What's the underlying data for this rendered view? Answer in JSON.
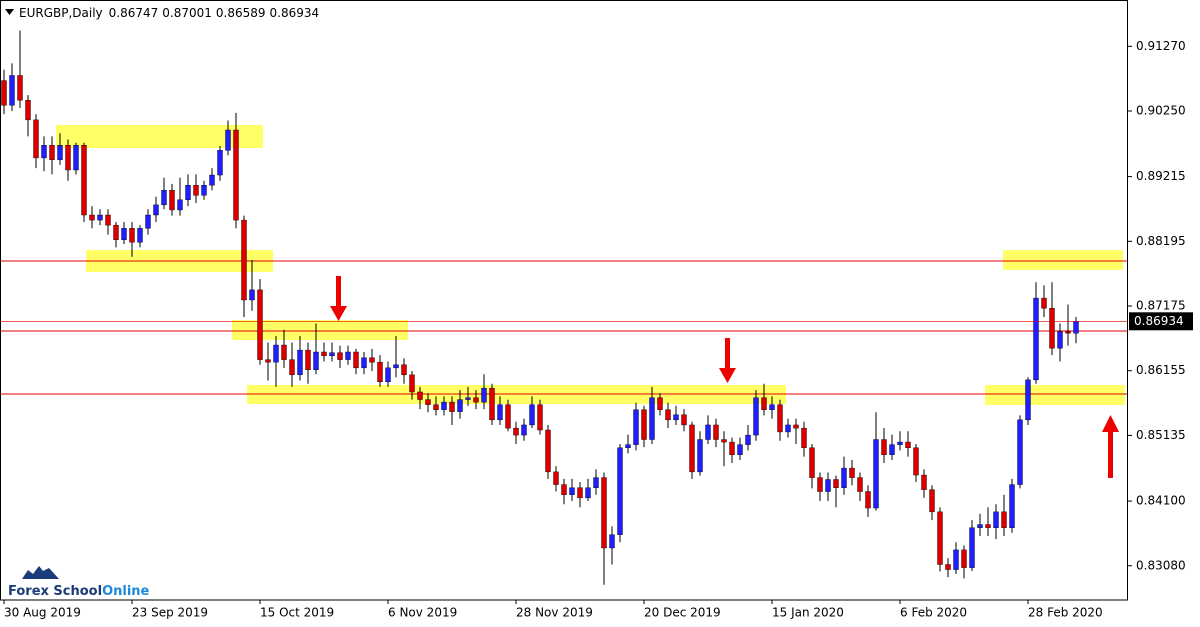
{
  "chart_data": {
    "type": "candlestick",
    "symbol": "EURGBP,Daily",
    "up_color": "#1f1fff",
    "down_color": "#dd0000",
    "ylim": [
      0.8254,
      0.92
    ],
    "yticks": [
      {
        "value": 0.9127,
        "label": "0.91270"
      },
      {
        "value": 0.9025,
        "label": "0.90250"
      },
      0.89215,
      0.88195,
      0.87175,
      0.86155,
      0.85135,
      {
        "value": 0.841,
        "label": "0.84100"
      },
      {
        "value": 0.8308,
        "label": "0.83080"
      }
    ],
    "categories": [
      "30 Aug 2019",
      null,
      null,
      null,
      null,
      null,
      null,
      null,
      null,
      null,
      null,
      null,
      null,
      null,
      null,
      null,
      "23 Sep 2019",
      null,
      null,
      null,
      null,
      null,
      null,
      null,
      null,
      null,
      null,
      null,
      null,
      null,
      null,
      null,
      "15 Oct 2019",
      null,
      null,
      null,
      null,
      null,
      null,
      null,
      null,
      null,
      null,
      null,
      null,
      null,
      null,
      null,
      "6 Nov 2019",
      null,
      null,
      null,
      null,
      null,
      null,
      null,
      null,
      null,
      null,
      null,
      null,
      null,
      null,
      null,
      "28 Nov 2019",
      null,
      null,
      null,
      null,
      null,
      null,
      null,
      null,
      null,
      null,
      null,
      null,
      null,
      null,
      null,
      "20 Dec 2019",
      null,
      null,
      null,
      null,
      null,
      null,
      null,
      null,
      null,
      null,
      null,
      null,
      null,
      null,
      null,
      "15 Jan 2020",
      null,
      null,
      null,
      null,
      null,
      null,
      null,
      null,
      null,
      null,
      null,
      null,
      null,
      null,
      null,
      "6 Feb 2020",
      null,
      null,
      null,
      null,
      null,
      null,
      null,
      null,
      null,
      null,
      null,
      null,
      null,
      null,
      null,
      "28 Feb 2020",
      null,
      null,
      null,
      null,
      null,
      null
    ],
    "ohlc": [
      [
        0.9073,
        0.909,
        0.902,
        0.9034
      ],
      [
        0.9034,
        0.91,
        0.9025,
        0.9081
      ],
      [
        0.9081,
        0.9152,
        0.903,
        0.9042
      ],
      [
        0.9042,
        0.905,
        0.8985,
        0.9011
      ],
      [
        0.9011,
        0.902,
        0.8935,
        0.8951
      ],
      [
        0.8951,
        0.8985,
        0.893,
        0.8971
      ],
      [
        0.8971,
        0.8985,
        0.8925,
        0.8948
      ],
      [
        0.8948,
        0.899,
        0.894,
        0.8971
      ],
      [
        0.8971,
        0.898,
        0.8915,
        0.8932
      ],
      [
        0.8932,
        0.8975,
        0.8925,
        0.8971
      ],
      [
        0.8971,
        0.8975,
        0.885,
        0.8861
      ],
      [
        0.8861,
        0.8875,
        0.884,
        0.8853
      ],
      [
        0.8853,
        0.887,
        0.8845,
        0.8861
      ],
      [
        0.8861,
        0.887,
        0.883,
        0.8845
      ],
      [
        0.8845,
        0.885,
        0.881,
        0.8822
      ],
      [
        0.8822,
        0.885,
        0.8815,
        0.884
      ],
      [
        0.884,
        0.885,
        0.8795,
        0.8818
      ],
      [
        0.8818,
        0.8845,
        0.881,
        0.884
      ],
      [
        0.884,
        0.887,
        0.883,
        0.8861
      ],
      [
        0.8861,
        0.889,
        0.885,
        0.8877
      ],
      [
        0.8877,
        0.892,
        0.887,
        0.89
      ],
      [
        0.89,
        0.891,
        0.886,
        0.8869
      ],
      [
        0.8869,
        0.892,
        0.886,
        0.8885
      ],
      [
        0.8885,
        0.8925,
        0.8875,
        0.8908
      ],
      [
        0.8908,
        0.8925,
        0.888,
        0.8892
      ],
      [
        0.8892,
        0.8915,
        0.8885,
        0.8908
      ],
      [
        0.8908,
        0.8935,
        0.89,
        0.8924
      ],
      [
        0.8924,
        0.897,
        0.8915,
        0.8963
      ],
      [
        0.8963,
        0.901,
        0.8955,
        0.8995
      ],
      [
        0.8995,
        0.9022,
        0.884,
        0.8853
      ],
      [
        0.8853,
        0.886,
        0.87,
        0.8727
      ],
      [
        0.8727,
        0.879,
        0.871,
        0.8743
      ],
      [
        0.8743,
        0.876,
        0.8625,
        0.8633
      ],
      [
        0.8633,
        0.866,
        0.86,
        0.8629
      ],
      [
        0.8629,
        0.867,
        0.859,
        0.8656
      ],
      [
        0.8656,
        0.868,
        0.862,
        0.8633
      ],
      [
        0.8633,
        0.866,
        0.859,
        0.8609
      ],
      [
        0.8609,
        0.867,
        0.86,
        0.8648
      ],
      [
        0.8648,
        0.866,
        0.8595,
        0.8617
      ],
      [
        0.8617,
        0.869,
        0.861,
        0.8645
      ],
      [
        0.8645,
        0.866,
        0.863,
        0.8639
      ],
      [
        0.8639,
        0.866,
        0.863,
        0.8644
      ],
      [
        0.8644,
        0.8655,
        0.862,
        0.8633
      ],
      [
        0.8633,
        0.8655,
        0.8625,
        0.8645
      ],
      [
        0.8645,
        0.865,
        0.861,
        0.862
      ],
      [
        0.862,
        0.8645,
        0.861,
        0.8636
      ],
      [
        0.8636,
        0.865,
        0.8615,
        0.8629
      ],
      [
        0.8629,
        0.864,
        0.859,
        0.8598
      ],
      [
        0.8598,
        0.863,
        0.859,
        0.862
      ],
      [
        0.862,
        0.867,
        0.8605,
        0.8625
      ],
      [
        0.8625,
        0.8635,
        0.8595,
        0.8609
      ],
      [
        0.8609,
        0.8615,
        0.857,
        0.8582
      ],
      [
        0.8582,
        0.859,
        0.8555,
        0.857
      ],
      [
        0.857,
        0.858,
        0.855,
        0.8562
      ],
      [
        0.8562,
        0.8575,
        0.8545,
        0.8554
      ],
      [
        0.8554,
        0.8575,
        0.8545,
        0.8566
      ],
      [
        0.8566,
        0.8575,
        0.853,
        0.8551
      ],
      [
        0.8551,
        0.8585,
        0.854,
        0.857
      ],
      [
        0.857,
        0.859,
        0.856,
        0.8573
      ],
      [
        0.8573,
        0.8585,
        0.8555,
        0.8566
      ],
      [
        0.8566,
        0.861,
        0.8555,
        0.8588
      ],
      [
        0.8588,
        0.8595,
        0.853,
        0.8538
      ],
      [
        0.8538,
        0.8575,
        0.853,
        0.8562
      ],
      [
        0.8562,
        0.857,
        0.852,
        0.8525
      ],
      [
        0.8525,
        0.8535,
        0.85,
        0.8514
      ],
      [
        0.8514,
        0.854,
        0.8505,
        0.853
      ],
      [
        0.853,
        0.8575,
        0.8525,
        0.8562
      ],
      [
        0.8562,
        0.857,
        0.8515,
        0.8522
      ],
      [
        0.8522,
        0.853,
        0.8445,
        0.8456
      ],
      [
        0.8456,
        0.8465,
        0.8425,
        0.8436
      ],
      [
        0.8436,
        0.8445,
        0.8405,
        0.842
      ],
      [
        0.842,
        0.8445,
        0.841,
        0.8431
      ],
      [
        0.8431,
        0.844,
        0.84,
        0.8415
      ],
      [
        0.8415,
        0.8445,
        0.841,
        0.8431
      ],
      [
        0.8431,
        0.846,
        0.842,
        0.8447
      ],
      [
        0.8447,
        0.8455,
        0.8278,
        0.8336
      ],
      [
        0.8336,
        0.837,
        0.831,
        0.8357
      ],
      [
        0.8357,
        0.85,
        0.8345,
        0.8494
      ],
      [
        0.8494,
        0.8515,
        0.8485,
        0.8499
      ],
      [
        0.8499,
        0.8565,
        0.849,
        0.8554
      ],
      [
        0.8554,
        0.856,
        0.8495,
        0.8507
      ],
      [
        0.8507,
        0.859,
        0.85,
        0.8573
      ],
      [
        0.8573,
        0.858,
        0.8545,
        0.8554
      ],
      [
        0.8554,
        0.8565,
        0.8525,
        0.8538
      ],
      [
        0.8538,
        0.856,
        0.853,
        0.8546
      ],
      [
        0.8546,
        0.8555,
        0.852,
        0.853
      ],
      [
        0.853,
        0.8535,
        0.8445,
        0.8456
      ],
      [
        0.8456,
        0.852,
        0.845,
        0.8507
      ],
      [
        0.8507,
        0.8545,
        0.85,
        0.853
      ],
      [
        0.853,
        0.854,
        0.8495,
        0.8507
      ],
      [
        0.8507,
        0.852,
        0.8465,
        0.8503
      ],
      [
        0.8503,
        0.851,
        0.847,
        0.8483
      ],
      [
        0.8483,
        0.851,
        0.8475,
        0.8499
      ],
      [
        0.8499,
        0.853,
        0.849,
        0.8514
      ],
      [
        0.8514,
        0.8585,
        0.8505,
        0.8573
      ],
      [
        0.8573,
        0.8595,
        0.8545,
        0.8554
      ],
      [
        0.8554,
        0.8575,
        0.854,
        0.8562
      ],
      [
        0.8562,
        0.857,
        0.8505,
        0.8519
      ],
      [
        0.8519,
        0.854,
        0.851,
        0.853
      ],
      [
        0.853,
        0.854,
        0.85,
        0.8525
      ],
      [
        0.8525,
        0.8535,
        0.848,
        0.8494
      ],
      [
        0.8494,
        0.85,
        0.843,
        0.8447
      ],
      [
        0.8447,
        0.8455,
        0.841,
        0.8425
      ],
      [
        0.8425,
        0.8455,
        0.841,
        0.8444
      ],
      [
        0.8444,
        0.845,
        0.84,
        0.8431
      ],
      [
        0.8431,
        0.848,
        0.842,
        0.8462
      ],
      [
        0.8462,
        0.8475,
        0.8435,
        0.8447
      ],
      [
        0.8447,
        0.8455,
        0.841,
        0.8425
      ],
      [
        0.8425,
        0.8435,
        0.8385,
        0.8399
      ],
      [
        0.8399,
        0.855,
        0.8395,
        0.8507
      ],
      [
        0.8507,
        0.8525,
        0.847,
        0.8483
      ],
      [
        0.8483,
        0.8515,
        0.8475,
        0.8499
      ],
      [
        0.8499,
        0.852,
        0.849,
        0.8503
      ],
      [
        0.8503,
        0.852,
        0.848,
        0.8494
      ],
      [
        0.8494,
        0.85,
        0.844,
        0.8451
      ],
      [
        0.8451,
        0.846,
        0.8415,
        0.8428
      ],
      [
        0.8428,
        0.8435,
        0.838,
        0.8393
      ],
      [
        0.8393,
        0.84,
        0.8299,
        0.831
      ],
      [
        0.831,
        0.832,
        0.829,
        0.8302
      ],
      [
        0.8302,
        0.8345,
        0.8295,
        0.8333
      ],
      [
        0.8333,
        0.834,
        0.8288,
        0.8305
      ],
      [
        0.8305,
        0.838,
        0.83,
        0.8368
      ],
      [
        0.8368,
        0.839,
        0.8355,
        0.8373
      ],
      [
        0.8373,
        0.84,
        0.8355,
        0.8368
      ],
      [
        0.8368,
        0.8405,
        0.835,
        0.8393
      ],
      [
        0.8393,
        0.842,
        0.8355,
        0.8368
      ],
      [
        0.8368,
        0.8445,
        0.836,
        0.8436
      ],
      [
        0.8436,
        0.8545,
        0.843,
        0.8538
      ],
      [
        0.8538,
        0.8605,
        0.853,
        0.8601
      ],
      [
        0.8601,
        0.8755,
        0.8595,
        0.873
      ],
      [
        0.873,
        0.875,
        0.87,
        0.8714
      ],
      [
        0.8714,
        0.8755,
        0.864,
        0.8651
      ],
      [
        0.8651,
        0.869,
        0.863,
        0.8677
      ],
      [
        0.8677,
        0.872,
        0.8655,
        0.86747
      ],
      [
        0.86747,
        0.87001,
        0.86589,
        0.86934
      ]
    ]
  },
  "logo": {
    "brand": "Forex School",
    "accent": "Online"
  }
}
